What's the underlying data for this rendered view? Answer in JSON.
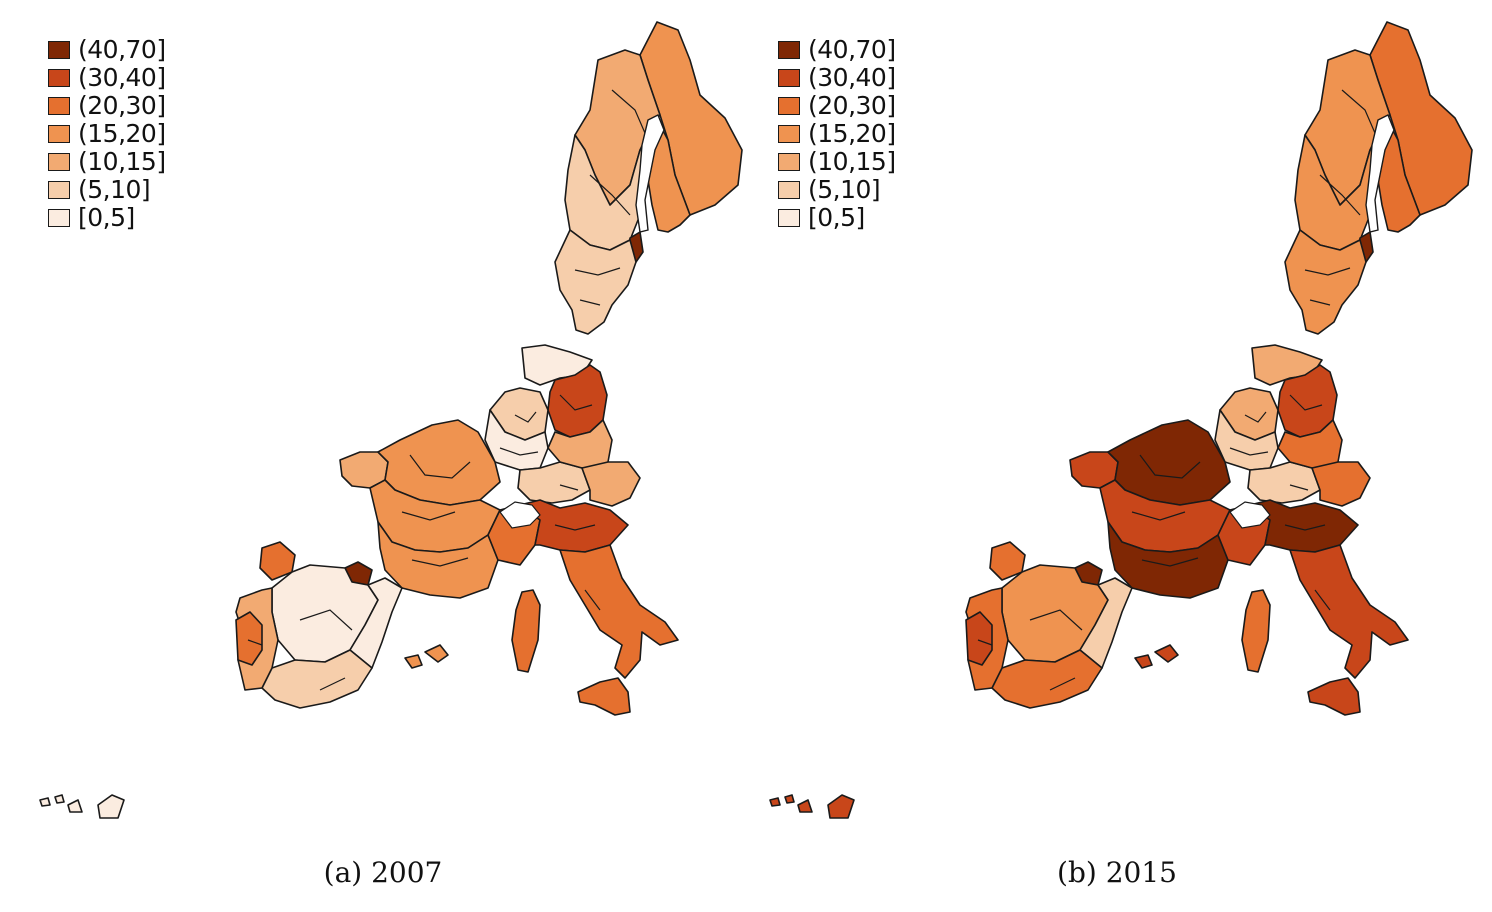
{
  "legend": [
    {
      "label": "(40,70]",
      "color": "#7f2704"
    },
    {
      "label": "(30,40]",
      "color": "#c8461a"
    },
    {
      "label": "(20,30]",
      "color": "#e5702f"
    },
    {
      "label": "(15,20]",
      "color": "#ef9350"
    },
    {
      "label": "(10,15]",
      "color": "#f2aa72"
    },
    {
      "label": "(5,10]",
      "color": "#f6ceab"
    },
    {
      "label": "[0,5]",
      "color": "#fbece0"
    }
  ],
  "panels": [
    {
      "caption": "(a) 2007",
      "regions": {
        "norway_north": "(15,20]",
        "norway_central": "(10,15]",
        "norway_south": "(5,10]",
        "sweden_north": "(5,10]",
        "sweden_south": "(5,10]",
        "sweden_east_strip": "(40,70]",
        "finland": "(15,20]",
        "denmark": "[0,5]",
        "netherlands": "(5,10]",
        "poland_czech": "(30,40]",
        "germany_west": "[0,5]",
        "germany_south": "(5,10]",
        "austria": "(10,15]",
        "hungary": "(10,15]",
        "france_brittany": "(10,15]",
        "france_north": "(15,20]",
        "france_center": "(15,20]",
        "france_south": "(15,20]",
        "france_southeast": "(20,30]",
        "italy_north": "(30,40]",
        "italy_south": "(20,30]",
        "sardinia": "(20,30]",
        "sicily": "(20,30]",
        "spain_northwest": "(20,30]",
        "spain_north_basque": "(40,70]",
        "spain_center": "[0,5]",
        "spain_east": "[0,5]",
        "spain_south": "(5,10]",
        "portugal": "(10,15]",
        "portugal_coast": "(20,30]",
        "balearics": "(15,20]",
        "canaries": "[0,5]"
      }
    },
    {
      "caption": "(b) 2015",
      "regions": {
        "norway_north": "(20,30]",
        "norway_central": "(15,20]",
        "norway_south": "(15,20]",
        "sweden_north": "(15,20]",
        "sweden_south": "(15,20]",
        "sweden_east_strip": "(40,70]",
        "finland": "(20,30]",
        "denmark": "(10,15]",
        "netherlands": "(10,15]",
        "poland_czech": "(30,40]",
        "germany_west": "(5,10]",
        "germany_south": "(5,10]",
        "austria": "(20,30]",
        "hungary": "(20,30]",
        "france_brittany": "(30,40]",
        "france_north": "(40,70]",
        "france_center": "(30,40]",
        "france_south": "(40,70]",
        "france_southeast": "(30,40]",
        "italy_north": "(40,70]",
        "italy_south": "(30,40]",
        "sardinia": "(20,30]",
        "sicily": "(30,40]",
        "spain_northwest": "(20,30]",
        "spain_north_basque": "(40,70]",
        "spain_center": "(15,20]",
        "spain_east": "(5,10]",
        "spain_south": "(20,30]",
        "portugal": "(20,30]",
        "portugal_coast": "(30,40]",
        "balearics": "(30,40]",
        "canaries": "(30,40]"
      }
    }
  ]
}
